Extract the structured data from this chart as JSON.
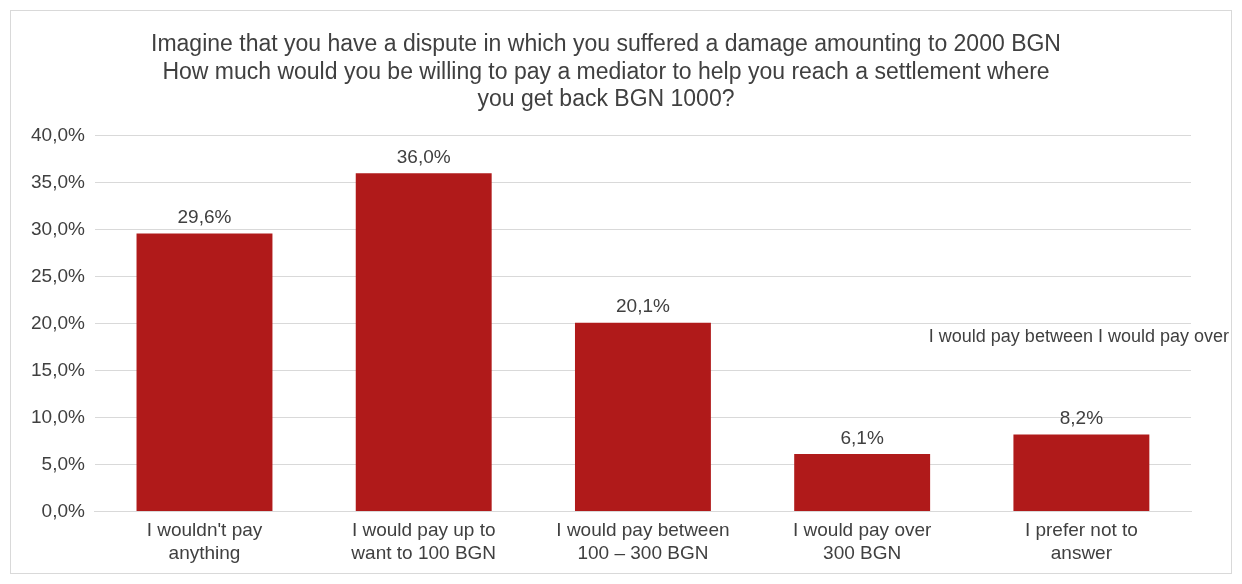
{
  "chart_data": {
    "type": "bar",
    "title": "Imagine that you have a dispute in which you suffered a damage amounting to 2000 BGN",
    "subtitle": "How much would you be willing to pay a mediator to help you reach a settlement where you get back BGN 1000?",
    "categories": [
      "I wouldn't pay anything",
      "I would pay up to want to 100 BGN",
      "I would pay between 100 – 300 BGN",
      "I would pay over 300 BGN",
      "I prefer not to answer"
    ],
    "values": [
      29.6,
      36.0,
      20.1,
      6.1,
      8.2
    ],
    "value_labels": [
      "29,6%",
      "36,0%",
      "20,1%",
      "6,1%",
      "8,2%"
    ],
    "color": "#b01a1a",
    "ylim": [
      0,
      40
    ],
    "yticks": [
      {
        "value": 0,
        "label": "0,0%"
      },
      {
        "value": 5,
        "label": "5,0%"
      },
      {
        "value": 10,
        "label": "10,0%"
      },
      {
        "value": 15,
        "label": "15,0%"
      },
      {
        "value": 20,
        "label": "20,0%"
      },
      {
        "value": 25,
        "label": "25,0%"
      },
      {
        "value": 30,
        "label": "30,0%"
      },
      {
        "value": 35,
        "label": "35,0%"
      },
      {
        "value": 40,
        "label": "40,0%"
      }
    ],
    "grid": "y",
    "annotations": [
      "I would pay between I would pay over"
    ]
  }
}
